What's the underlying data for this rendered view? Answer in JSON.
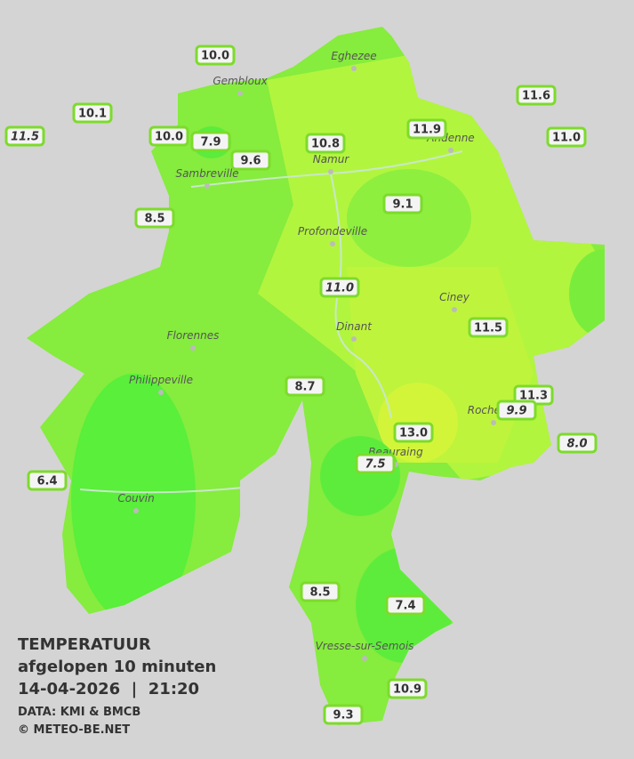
{
  "map": {
    "cities": [
      "Eghezee",
      "Gembloux",
      "Andenne",
      "Namur",
      "Sambreville",
      "Profondeville",
      "Ciney",
      "Dinant",
      "Florennes",
      "Philippeville",
      "Rochefort",
      "Beauraing",
      "Couvin",
      "Vresse-sur-Semois"
    ],
    "stations": [
      {
        "label": "10.0",
        "italic": false
      },
      {
        "label": "10.1",
        "italic": false
      },
      {
        "label": "11.5",
        "italic": true
      },
      {
        "label": "10.0",
        "italic": false
      },
      {
        "label": "7.9",
        "italic": false
      },
      {
        "label": "9.6",
        "italic": false
      },
      {
        "label": "10.8",
        "italic": false
      },
      {
        "label": "11.9",
        "italic": false
      },
      {
        "label": "11.6",
        "italic": false
      },
      {
        "label": "11.0",
        "italic": false
      },
      {
        "label": "8.5",
        "italic": false
      },
      {
        "label": "9.1",
        "italic": false
      },
      {
        "label": "11.0",
        "italic": true
      },
      {
        "label": "11.5",
        "italic": false
      },
      {
        "label": "8.7",
        "italic": false
      },
      {
        "label": "11.3",
        "italic": false
      },
      {
        "label": "9.9",
        "italic": true
      },
      {
        "label": "13.0",
        "italic": false
      },
      {
        "label": "8.0",
        "italic": true
      },
      {
        "label": "6.4",
        "italic": false
      },
      {
        "label": "7.5",
        "italic": true
      },
      {
        "label": "8.5",
        "italic": false
      },
      {
        "label": "7.4",
        "italic": false
      },
      {
        "label": "10.9",
        "italic": false
      },
      {
        "label": "9.3",
        "italic": false
      }
    ],
    "legend": {
      "title": "TEMPERATUUR",
      "subtitle": "afgelopen 10 minuten",
      "datetime": "14-04-2026  |  21:20",
      "source": "DATA: KMI & BMCB",
      "credit": "© METEO-BE.NET"
    }
  }
}
